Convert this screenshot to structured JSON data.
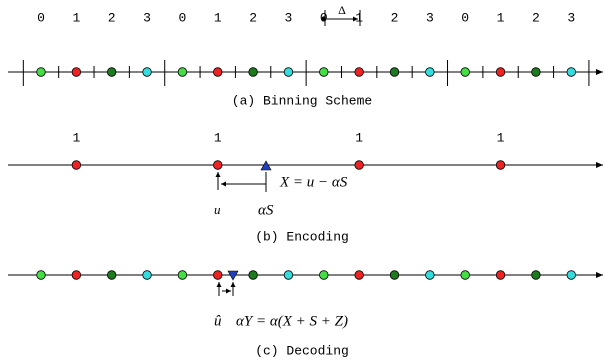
{
  "binning": {
    "labels": [
      "0",
      "1",
      "2",
      "3",
      "0",
      "1",
      "2",
      "3",
      "0",
      "1",
      "2",
      "3",
      "0",
      "1",
      "2",
      "3"
    ],
    "delta": "Δ",
    "caption": "(a) Binning Scheme"
  },
  "encoding": {
    "labels": [
      "1",
      "1",
      "1",
      "1"
    ],
    "formula": "X = u − αS",
    "u": "u",
    "alpha_s": "αS",
    "caption": "(b) Encoding"
  },
  "decoding": {
    "u_hat": "û",
    "formula": "αY = α(X + S + Z)",
    "caption": "(c) Decoding"
  }
}
